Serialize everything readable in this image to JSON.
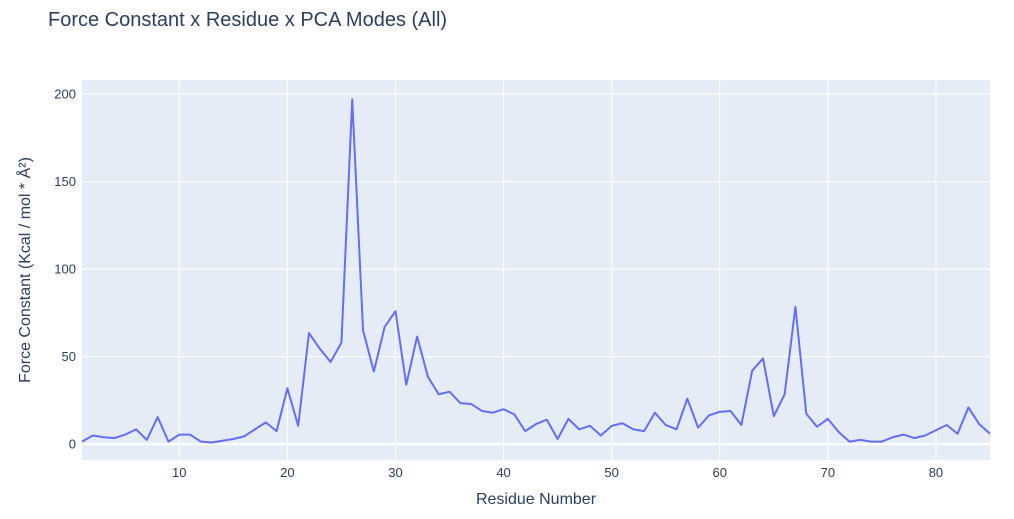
{
  "chart_data": {
    "type": "line",
    "title": "Force Constant x Residue x PCA Modes (All)",
    "xlabel": "Residue Number",
    "ylabel": "Force Constant (Kcal / mol * Å²)",
    "xlim": [
      1,
      85
    ],
    "ylim": [
      -9,
      208
    ],
    "xticks": [
      10,
      20,
      30,
      40,
      50,
      60,
      70,
      80
    ],
    "yticks": [
      0,
      50,
      100,
      150,
      200
    ],
    "grid": true,
    "legend": "none",
    "series": [
      {
        "color": "#636efa",
        "x": [
          1,
          2,
          3,
          4,
          5,
          6,
          7,
          8,
          9,
          10,
          11,
          12,
          13,
          14,
          15,
          16,
          17,
          18,
          19,
          20,
          21,
          22,
          23,
          24,
          25,
          26,
          27,
          28,
          29,
          30,
          31,
          32,
          33,
          34,
          35,
          36,
          37,
          38,
          39,
          40,
          41,
          42,
          43,
          44,
          45,
          46,
          47,
          48,
          49,
          50,
          51,
          52,
          53,
          54,
          55,
          56,
          57,
          58,
          59,
          60,
          61,
          62,
          63,
          64,
          65,
          66,
          67,
          68,
          69,
          70,
          71,
          72,
          73,
          74,
          75,
          76,
          77,
          78,
          79,
          80,
          81,
          82,
          83,
          84,
          85
        ],
        "y": [
          1.5,
          5,
          4,
          3.5,
          5.5,
          8.5,
          2.5,
          15.5,
          1.5,
          5.5,
          5.5,
          1.5,
          1,
          2,
          3,
          4.5,
          8.5,
          12.5,
          7.5,
          32,
          10.5,
          63.5,
          54.5,
          47,
          58,
          197,
          65,
          41.5,
          67,
          76,
          34,
          61.5,
          38.5,
          28.5,
          30,
          23.5,
          23,
          19,
          18,
          20,
          17,
          7.5,
          11.5,
          14,
          3,
          14.5,
          8.5,
          10.5,
          5,
          10.5,
          12,
          8.5,
          7.5,
          18,
          11,
          8.5,
          26,
          9.5,
          16.5,
          18.5,
          19,
          11,
          42,
          49,
          16,
          28.5,
          78.5,
          17.5,
          10,
          14.5,
          7,
          1.5,
          2.5,
          1.5,
          1.5,
          4,
          5.5,
          3.5,
          5,
          8,
          11,
          6,
          21,
          11.5,
          6
        ]
      }
    ]
  }
}
